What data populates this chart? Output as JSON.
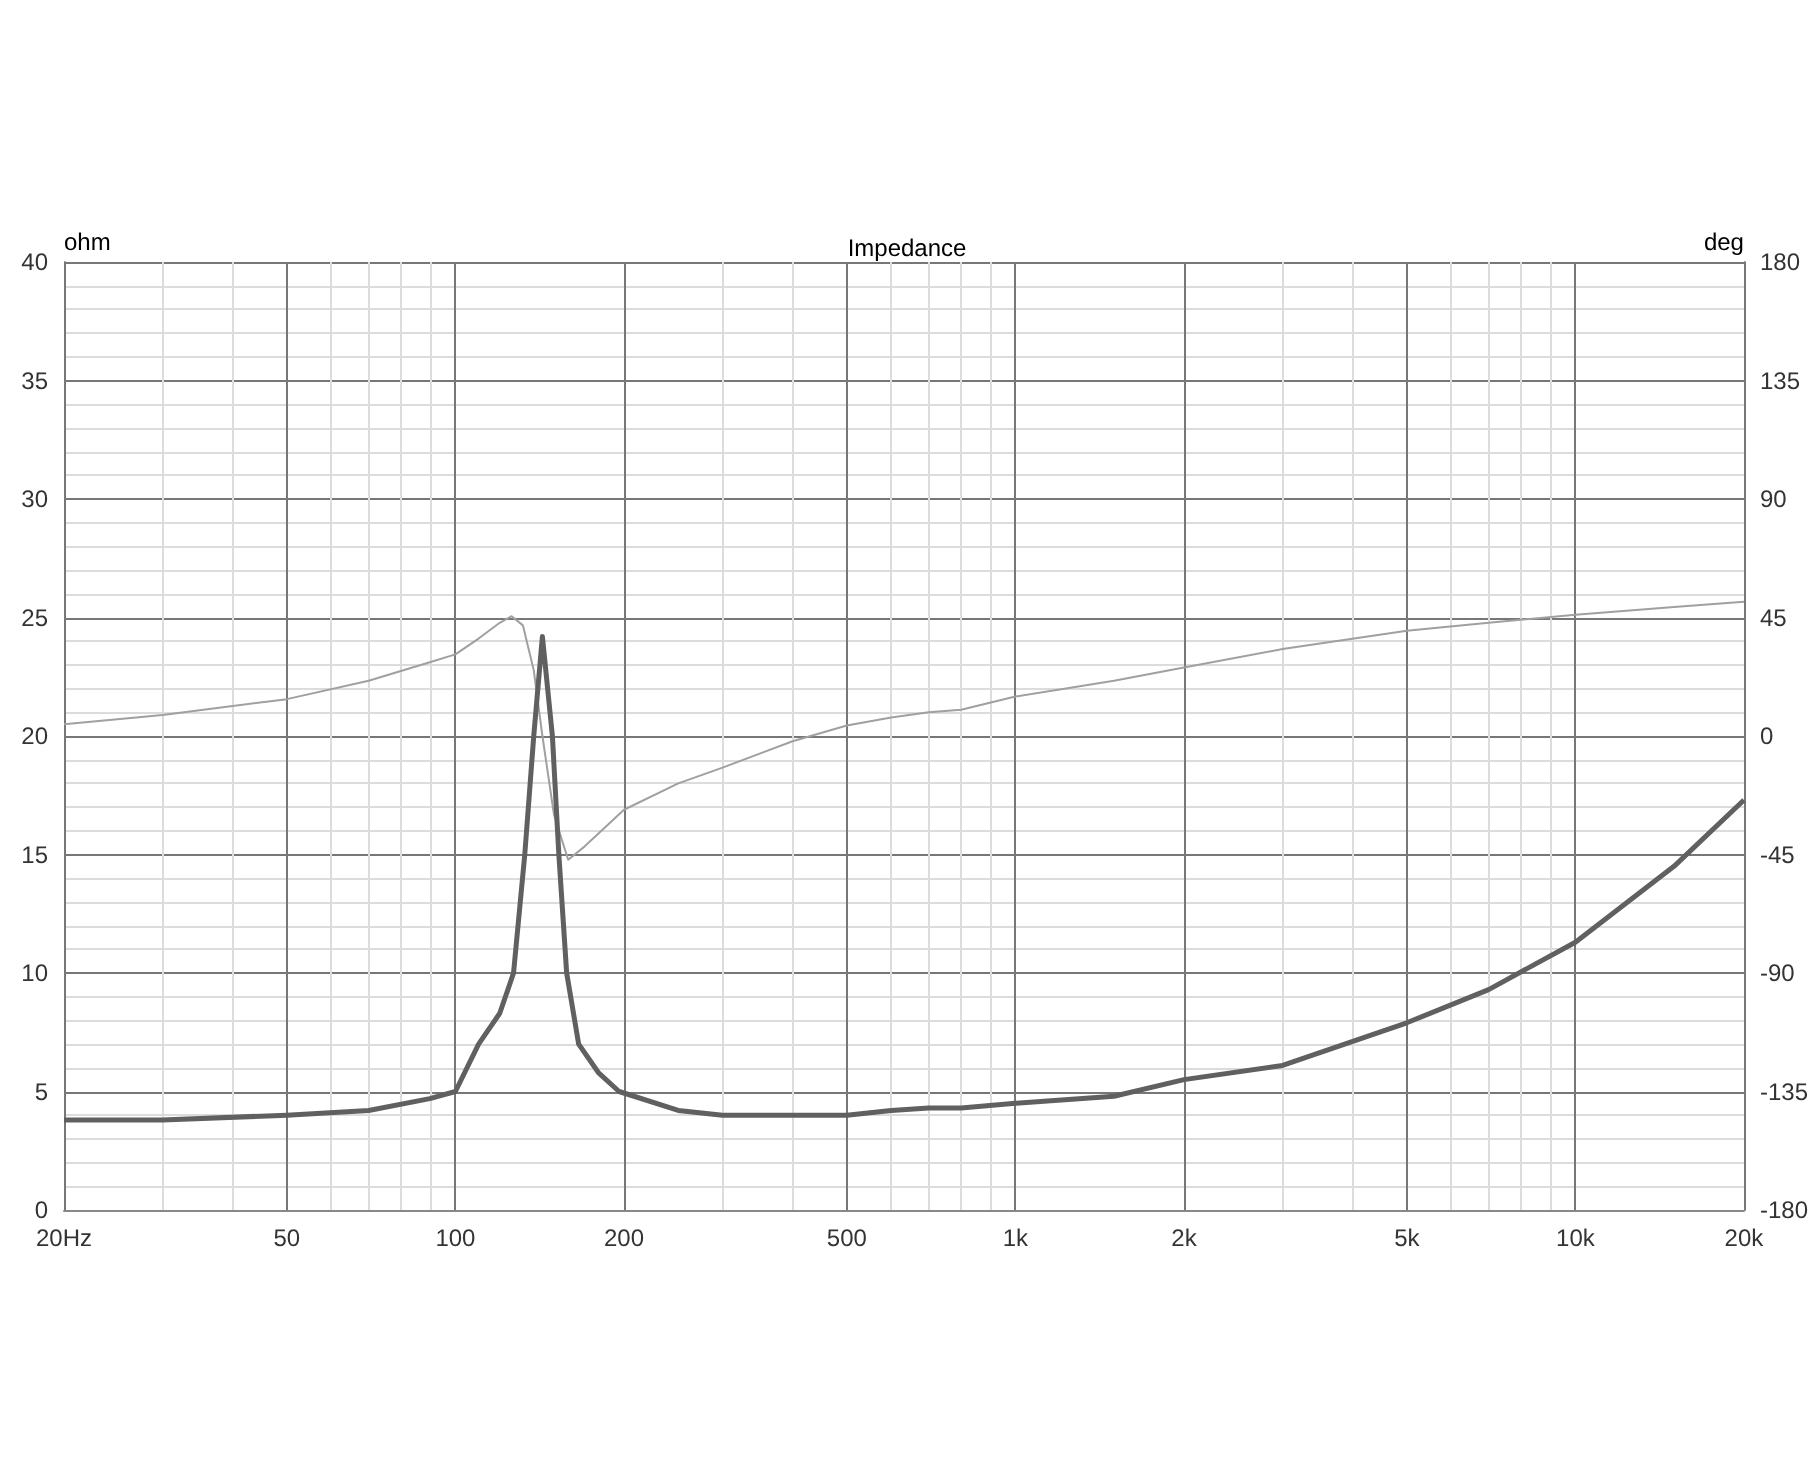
{
  "chart_data": {
    "type": "line",
    "title": "Impedance",
    "ylabel": "ohm",
    "y2label": "deg",
    "log": "x",
    "grid": true,
    "marker": "none",
    "xlim": [
      20,
      20000
    ],
    "xticks": [
      {
        "value": 20,
        "label": "20Hz"
      },
      {
        "value": 30,
        "label": null
      },
      {
        "value": 40,
        "label": null
      },
      50,
      {
        "value": 60,
        "label": null
      },
      {
        "value": 70,
        "label": null
      },
      {
        "value": 80,
        "label": null
      },
      {
        "value": 90,
        "label": null
      },
      100,
      200,
      {
        "value": 300,
        "label": null
      },
      {
        "value": 400,
        "label": null
      },
      500,
      {
        "value": 600,
        "label": null
      },
      {
        "value": 700,
        "label": null
      },
      {
        "value": 800,
        "label": null
      },
      {
        "value": 900,
        "label": null
      },
      {
        "value": 1000,
        "label": "1k"
      },
      {
        "value": 2000,
        "label": "2k"
      },
      {
        "value": 3000,
        "label": null
      },
      {
        "value": 4000,
        "label": null
      },
      {
        "value": 5000,
        "label": "5k"
      },
      {
        "value": 6000,
        "label": null
      },
      {
        "value": 7000,
        "label": null
      },
      {
        "value": 8000,
        "label": null
      },
      {
        "value": 9000,
        "label": null
      },
      {
        "value": 10000,
        "label": "10k"
      },
      {
        "value": 20000,
        "label": "20k"
      }
    ],
    "ylim": [
      0,
      40
    ],
    "yticks": [
      0,
      {
        "value": 1,
        "label": null
      },
      {
        "value": 2,
        "label": null
      },
      {
        "value": 3,
        "label": null
      },
      {
        "value": 4,
        "label": null
      },
      5,
      {
        "value": 6,
        "label": null
      },
      {
        "value": 7,
        "label": null
      },
      {
        "value": 8,
        "label": null
      },
      {
        "value": 9,
        "label": null
      },
      10,
      {
        "value": 11,
        "label": null
      },
      {
        "value": 12,
        "label": null
      },
      {
        "value": 13,
        "label": null
      },
      {
        "value": 14,
        "label": null
      },
      15,
      {
        "value": 16,
        "label": null
      },
      {
        "value": 17,
        "label": null
      },
      {
        "value": 18,
        "label": null
      },
      {
        "value": 19,
        "label": null
      },
      20,
      {
        "value": 21,
        "label": null
      },
      {
        "value": 22,
        "label": null
      },
      {
        "value": 23,
        "label": null
      },
      {
        "value": 24,
        "label": null
      },
      25,
      {
        "value": 26,
        "label": null
      },
      {
        "value": 27,
        "label": null
      },
      {
        "value": 28,
        "label": null
      },
      {
        "value": 29,
        "label": null
      },
      30,
      {
        "value": 31,
        "label": null
      },
      {
        "value": 32,
        "label": null
      },
      {
        "value": 33,
        "label": null
      },
      {
        "value": 34,
        "label": null
      },
      35,
      {
        "value": 36,
        "label": null
      },
      {
        "value": 37,
        "label": null
      },
      {
        "value": 38,
        "label": null
      },
      {
        "value": 39,
        "label": null
      },
      40
    ],
    "y2lim": [
      -180,
      180
    ],
    "y2ticks": [
      -180,
      -135,
      -90,
      -45,
      0,
      45,
      90,
      135,
      180
    ],
    "series": [
      {
        "color": "#a0a0a0",
        "axis": "y2",
        "x": [
          20,
          30,
          50,
          70,
          90,
          100,
          110,
          120,
          126,
          132,
          138,
          143,
          150,
          159,
          170,
          200,
          250,
          300,
          400,
          500,
          600,
          700,
          800,
          1000,
          1500,
          2000,
          3000,
          5000,
          7000,
          10000,
          15000,
          20000
        ],
        "values": [
          4.5,
          8,
          14,
          21,
          28,
          31,
          37,
          43,
          45.5,
          42,
          25,
          0,
          -30,
          -47,
          -42,
          -28,
          -18,
          -12,
          -2,
          4,
          7,
          9,
          10,
          15,
          21,
          26,
          33,
          40,
          43,
          46,
          49,
          51
        ]
      },
      {
        "color": "#606060",
        "x": [
          20,
          30,
          50,
          70,
          90,
          100,
          110,
          120,
          127,
          133,
          138,
          143,
          149,
          153,
          158,
          166,
          180,
          196,
          250,
          300,
          400,
          500,
          600,
          700,
          800,
          1000,
          1500,
          2000,
          3000,
          5000,
          7000,
          10000,
          15000,
          20000
        ],
        "values": [
          3.8,
          3.8,
          4,
          4.2,
          4.7,
          5,
          7,
          8.3,
          10,
          15,
          20,
          24.2,
          20,
          15,
          10,
          7,
          5.8,
          5,
          4.2,
          4,
          4,
          4,
          4.2,
          4.3,
          4.3,
          4.5,
          4.8,
          5.5,
          6.1,
          7.9,
          9.3,
          11.3,
          14.5,
          17.3
        ]
      }
    ]
  }
}
